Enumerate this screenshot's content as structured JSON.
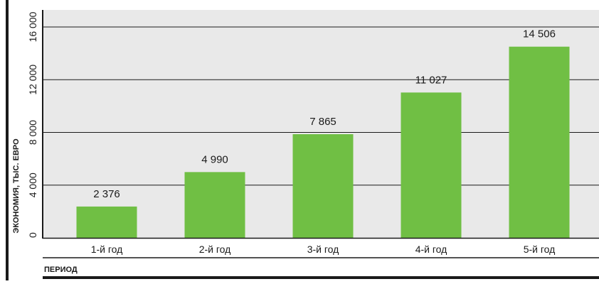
{
  "chart_data": {
    "type": "bar",
    "categories": [
      "1-й год",
      "2-й год",
      "3-й год",
      "4-й год",
      "5-й год"
    ],
    "values": [
      2376,
      4990,
      7865,
      11027,
      14506
    ],
    "value_labels": [
      "2 376",
      "4 990",
      "7 865",
      "11 027",
      "14 506"
    ],
    "title": "",
    "xlabel": "ПЕРИОД",
    "ylabel": "ЭКОНОМИЯ, ТЫС. ЕВРО",
    "ylim": [
      0,
      16000
    ],
    "yticks": [
      0,
      4000,
      8000,
      12000,
      16000
    ],
    "ytick_labels": [
      "0",
      "4 000",
      "8 000",
      "12 000",
      "16 000"
    ],
    "grid": true,
    "legend": "none",
    "colors": {
      "bar": "#70bf44",
      "plot_background": "#e9e9e9",
      "gridline": "#1a1a1a",
      "axis": "#1a1a1a"
    }
  }
}
